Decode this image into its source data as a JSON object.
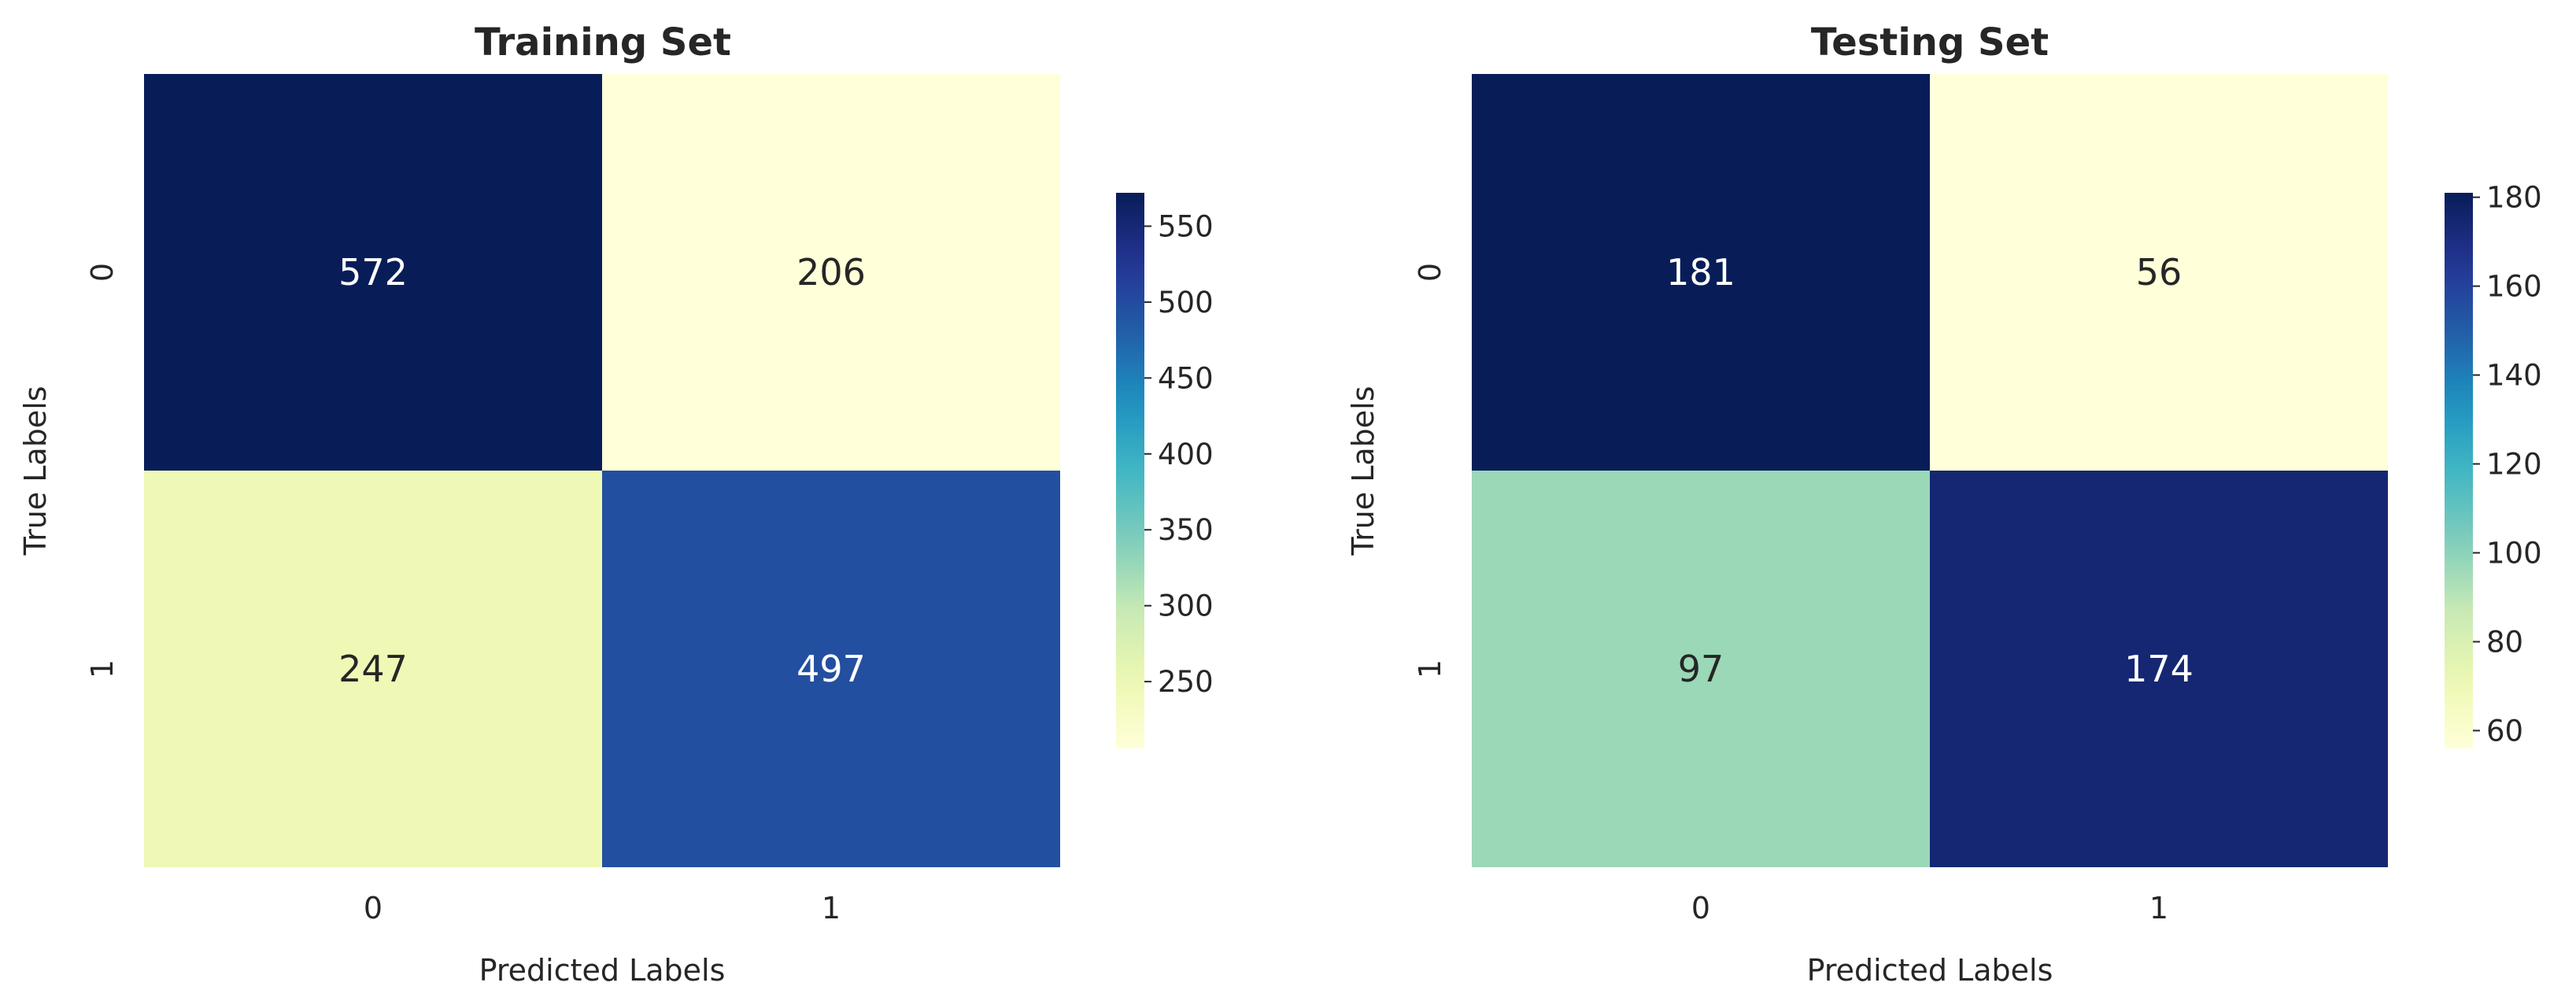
{
  "chart_data": [
    {
      "type": "heatmap",
      "title": "Training Set",
      "xlabel": "Predicted Labels",
      "ylabel": "True Labels",
      "x_categories": [
        "0",
        "1"
      ],
      "y_categories": [
        "0",
        "1"
      ],
      "values": [
        [
          572,
          206
        ],
        [
          247,
          497
        ]
      ],
      "colormap": "YlGnBu",
      "colorbar_range": [
        206,
        572
      ],
      "colorbar_ticks": [
        250,
        300,
        350,
        400,
        450,
        500,
        550
      ]
    },
    {
      "type": "heatmap",
      "title": "Testing Set",
      "xlabel": "Predicted Labels",
      "ylabel": "True Labels",
      "x_categories": [
        "0",
        "1"
      ],
      "y_categories": [
        "0",
        "1"
      ],
      "values": [
        [
          181,
          56
        ],
        [
          97,
          174
        ]
      ],
      "colormap": "YlGnBu",
      "colorbar_range": [
        56,
        181
      ],
      "colorbar_ticks": [
        60,
        80,
        100,
        120,
        140,
        160,
        180
      ]
    }
  ]
}
